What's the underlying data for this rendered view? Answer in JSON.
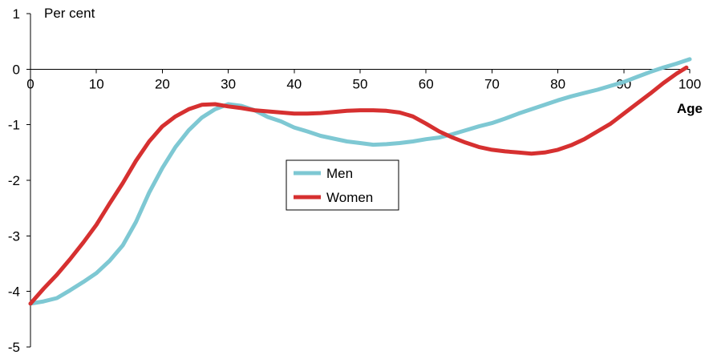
{
  "chart_data": {
    "type": "line",
    "title": "",
    "ylabel": "Per cent",
    "xlabel": "Age",
    "xlim": [
      0,
      100
    ],
    "ylim": [
      -5,
      1
    ],
    "x_ticks": [
      0,
      10,
      20,
      30,
      40,
      50,
      60,
      70,
      80,
      90,
      100
    ],
    "y_ticks": [
      1,
      0,
      -1,
      -2,
      -3,
      -4,
      -5
    ],
    "grid": false,
    "legend_position": "center",
    "series": [
      {
        "name": "Men",
        "color": "#7ec8d3",
        "x": [
          0,
          2,
          4,
          6,
          8,
          10,
          12,
          14,
          16,
          18,
          20,
          22,
          24,
          26,
          28,
          30,
          32,
          34,
          36,
          38,
          40,
          42,
          44,
          46,
          48,
          50,
          52,
          54,
          56,
          58,
          60,
          62,
          64,
          66,
          68,
          70,
          72,
          74,
          76,
          78,
          80,
          82,
          84,
          86,
          88,
          90,
          92,
          94,
          96,
          98,
          100
        ],
        "y": [
          -4.22,
          -4.18,
          -4.12,
          -3.98,
          -3.83,
          -3.67,
          -3.45,
          -3.17,
          -2.75,
          -2.22,
          -1.78,
          -1.4,
          -1.1,
          -0.87,
          -0.72,
          -0.63,
          -0.66,
          -0.74,
          -0.86,
          -0.94,
          -1.05,
          -1.12,
          -1.2,
          -1.25,
          -1.3,
          -1.33,
          -1.36,
          -1.35,
          -1.33,
          -1.3,
          -1.26,
          -1.23,
          -1.17,
          -1.1,
          -1.03,
          -0.97,
          -0.89,
          -0.8,
          -0.72,
          -0.64,
          -0.56,
          -0.49,
          -0.43,
          -0.37,
          -0.3,
          -0.23,
          -0.14,
          -0.05,
          0.03,
          0.1,
          0.18
        ]
      },
      {
        "name": "Women",
        "color": "#d63030",
        "x": [
          0,
          2,
          4,
          6,
          8,
          10,
          12,
          14,
          16,
          18,
          20,
          22,
          24,
          26,
          28,
          30,
          32,
          34,
          36,
          38,
          40,
          42,
          44,
          46,
          48,
          50,
          52,
          54,
          56,
          58,
          60,
          62,
          64,
          66,
          68,
          70,
          72,
          74,
          76,
          78,
          80,
          82,
          84,
          86,
          88,
          90,
          92,
          94,
          96,
          98,
          99.5
        ],
        "y": [
          -4.22,
          -3.95,
          -3.7,
          -3.42,
          -3.12,
          -2.8,
          -2.42,
          -2.05,
          -1.65,
          -1.3,
          -1.03,
          -0.85,
          -0.72,
          -0.64,
          -0.63,
          -0.67,
          -0.7,
          -0.74,
          -0.76,
          -0.78,
          -0.8,
          -0.8,
          -0.79,
          -0.77,
          -0.75,
          -0.74,
          -0.74,
          -0.75,
          -0.78,
          -0.85,
          -0.98,
          -1.12,
          -1.23,
          -1.32,
          -1.4,
          -1.45,
          -1.48,
          -1.5,
          -1.52,
          -1.5,
          -1.45,
          -1.37,
          -1.26,
          -1.12,
          -0.98,
          -0.8,
          -0.62,
          -0.44,
          -0.25,
          -0.08,
          0.03
        ]
      }
    ]
  }
}
